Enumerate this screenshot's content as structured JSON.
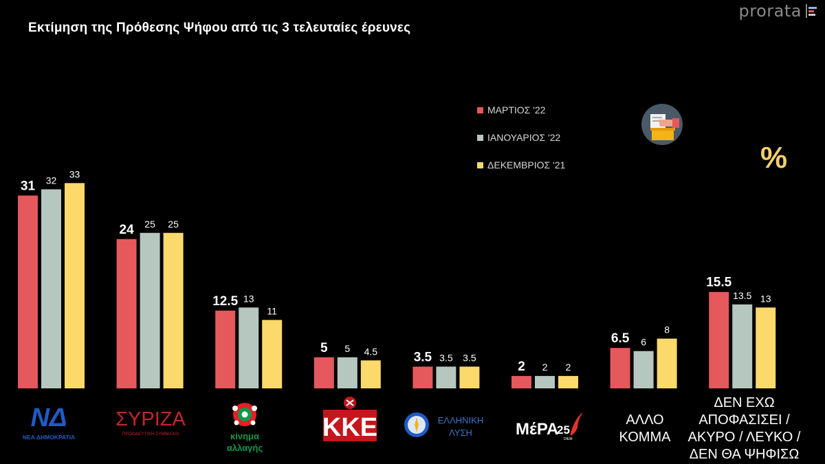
{
  "header": {
    "title": "Εκτίμηση της Πρόθεσης Ψήφου από τις 3 τελευταίες έρευνες",
    "brand": "prorata"
  },
  "legend": [
    {
      "label": "ΜΑΡΤΙΟΣ '22",
      "color": "#e5585c"
    },
    {
      "label": "ΙΑΝΟΥΑΡΙΟΣ '22",
      "color": "#b6c7c0"
    },
    {
      "label": "ΔΕΚΕΜΒΡΙΟΣ '21",
      "color": "#fcd96b"
    }
  ],
  "percent_symbol": "%",
  "logos": {
    "nd": {
      "mark": "ΝΔ",
      "caption": "ΝΕΑ ΔΗΜΟΚΡΑΤΙΑ"
    },
    "syriza": {
      "mark": "ΣΥΡΙΖΑ",
      "caption": "ΠΡΟΟΔΕΥΤΙΚΗ ΣΥΜΜΑΧΙΑ"
    },
    "kinal": {
      "line1": "κίνημα",
      "line2": "αλλαγής"
    },
    "kke": {
      "mark": "ΚΚΕ"
    },
    "el": {
      "line1": "ΕΛΛΗΝΙΚΗ",
      "line2": "ΛΥΣΗ"
    },
    "mera25": {
      "mark": "ΜέΡΑ",
      "num": "25",
      "sub": "DIEM"
    }
  },
  "category_labels": {
    "other": [
      "ΑΛΛΟ",
      "ΚΟΜΜΑ"
    ],
    "undecided": [
      "ΔΕΝ ΕΧΩ",
      "ΑΠΟΦΑΣΙΣΕΙ /",
      "ΑΚΥΡΟ / ΛΕΥΚΟ /",
      "ΔΕΝ ΘΑ ΨΗΦΙΣΩ"
    ]
  },
  "chart_data": {
    "type": "bar",
    "title": "Εκτίμηση της Πρόθεσης Ψήφου από τις 3 τελευταίες έρευνες",
    "categories": [
      "ΝΔ",
      "ΣΥΡΙΖΑ",
      "ΚΙΝΑΛ",
      "ΚΚΕ",
      "ΕΛΛΗΝΙΚΗ ΛΥΣΗ",
      "ΜέΡΑ25",
      "ΑΛΛΟ ΚΟΜΜΑ",
      "ΔΕΝ ΕΧΩ ΑΠΟΦΑΣΙΣΕΙ / ΑΚΥΡΟ / ΛΕΥΚΟ / ΔΕΝ ΘΑ ΨΗΦΙΣΩ"
    ],
    "series": [
      {
        "name": "ΜΑΡΤΙΟΣ '22",
        "color": "#e5585c",
        "values": [
          31,
          24,
          12.5,
          5,
          3.5,
          2,
          6.5,
          15.5
        ],
        "labels": [
          "31",
          "24",
          "12.5",
          "5",
          "3.5",
          "2",
          "6.5",
          "15.5"
        ]
      },
      {
        "name": "ΙΑΝΟΥΑΡΙΟΣ '22",
        "color": "#b6c7c0",
        "values": [
          32,
          25,
          13,
          5,
          3.5,
          2,
          6,
          13.5
        ],
        "labels": [
          "32",
          "25",
          "13",
          "5",
          "3.5",
          "2",
          "6",
          "13.5"
        ]
      },
      {
        "name": "ΔΕΚΕΜΒΡΙΟΣ '21",
        "color": "#fcd96b",
        "values": [
          33,
          25,
          11,
          4.5,
          3.5,
          2,
          8,
          13
        ],
        "labels": [
          "33",
          "25",
          "11",
          "4.5",
          "3.5",
          "2",
          "8",
          "13"
        ]
      }
    ],
    "xlabel": "",
    "ylabel": "",
    "ylim": [
      0,
      33
    ],
    "grid": false,
    "legend_position": "top-right",
    "axes_visible": false
  }
}
